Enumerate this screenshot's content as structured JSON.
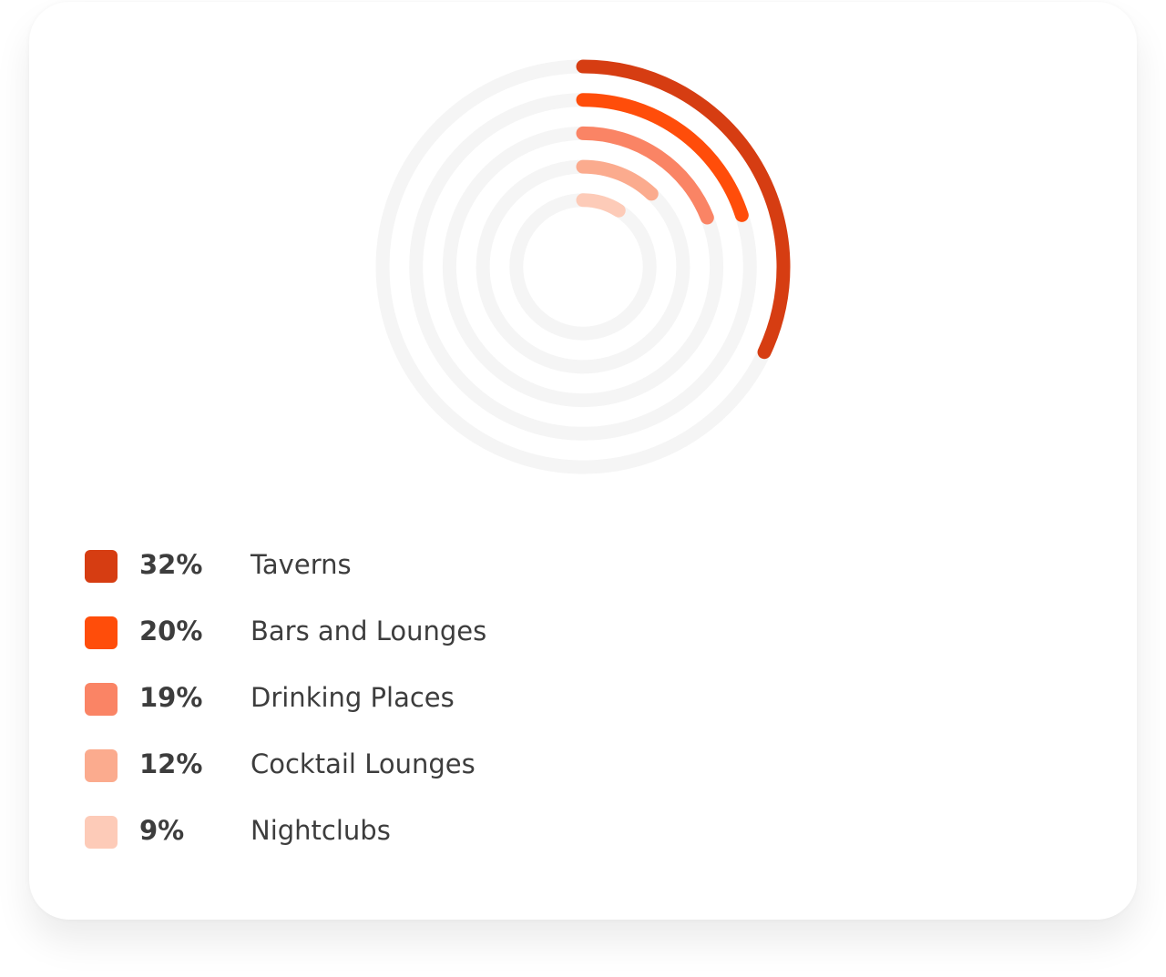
{
  "chart_data": {
    "type": "radial-bar",
    "categories": [
      "Taverns",
      "Bars and Lounges",
      "Drinking Places",
      "Cocktail Lounges",
      "Nightclubs"
    ],
    "values": [
      32,
      20,
      19,
      12,
      9
    ],
    "value_labels": [
      "32%",
      "20%",
      "19%",
      "12%",
      "9%"
    ],
    "colors": [
      "#d63d12",
      "#ff4d0a",
      "#fa8465",
      "#fbab8e",
      "#fdcbb8"
    ]
  }
}
